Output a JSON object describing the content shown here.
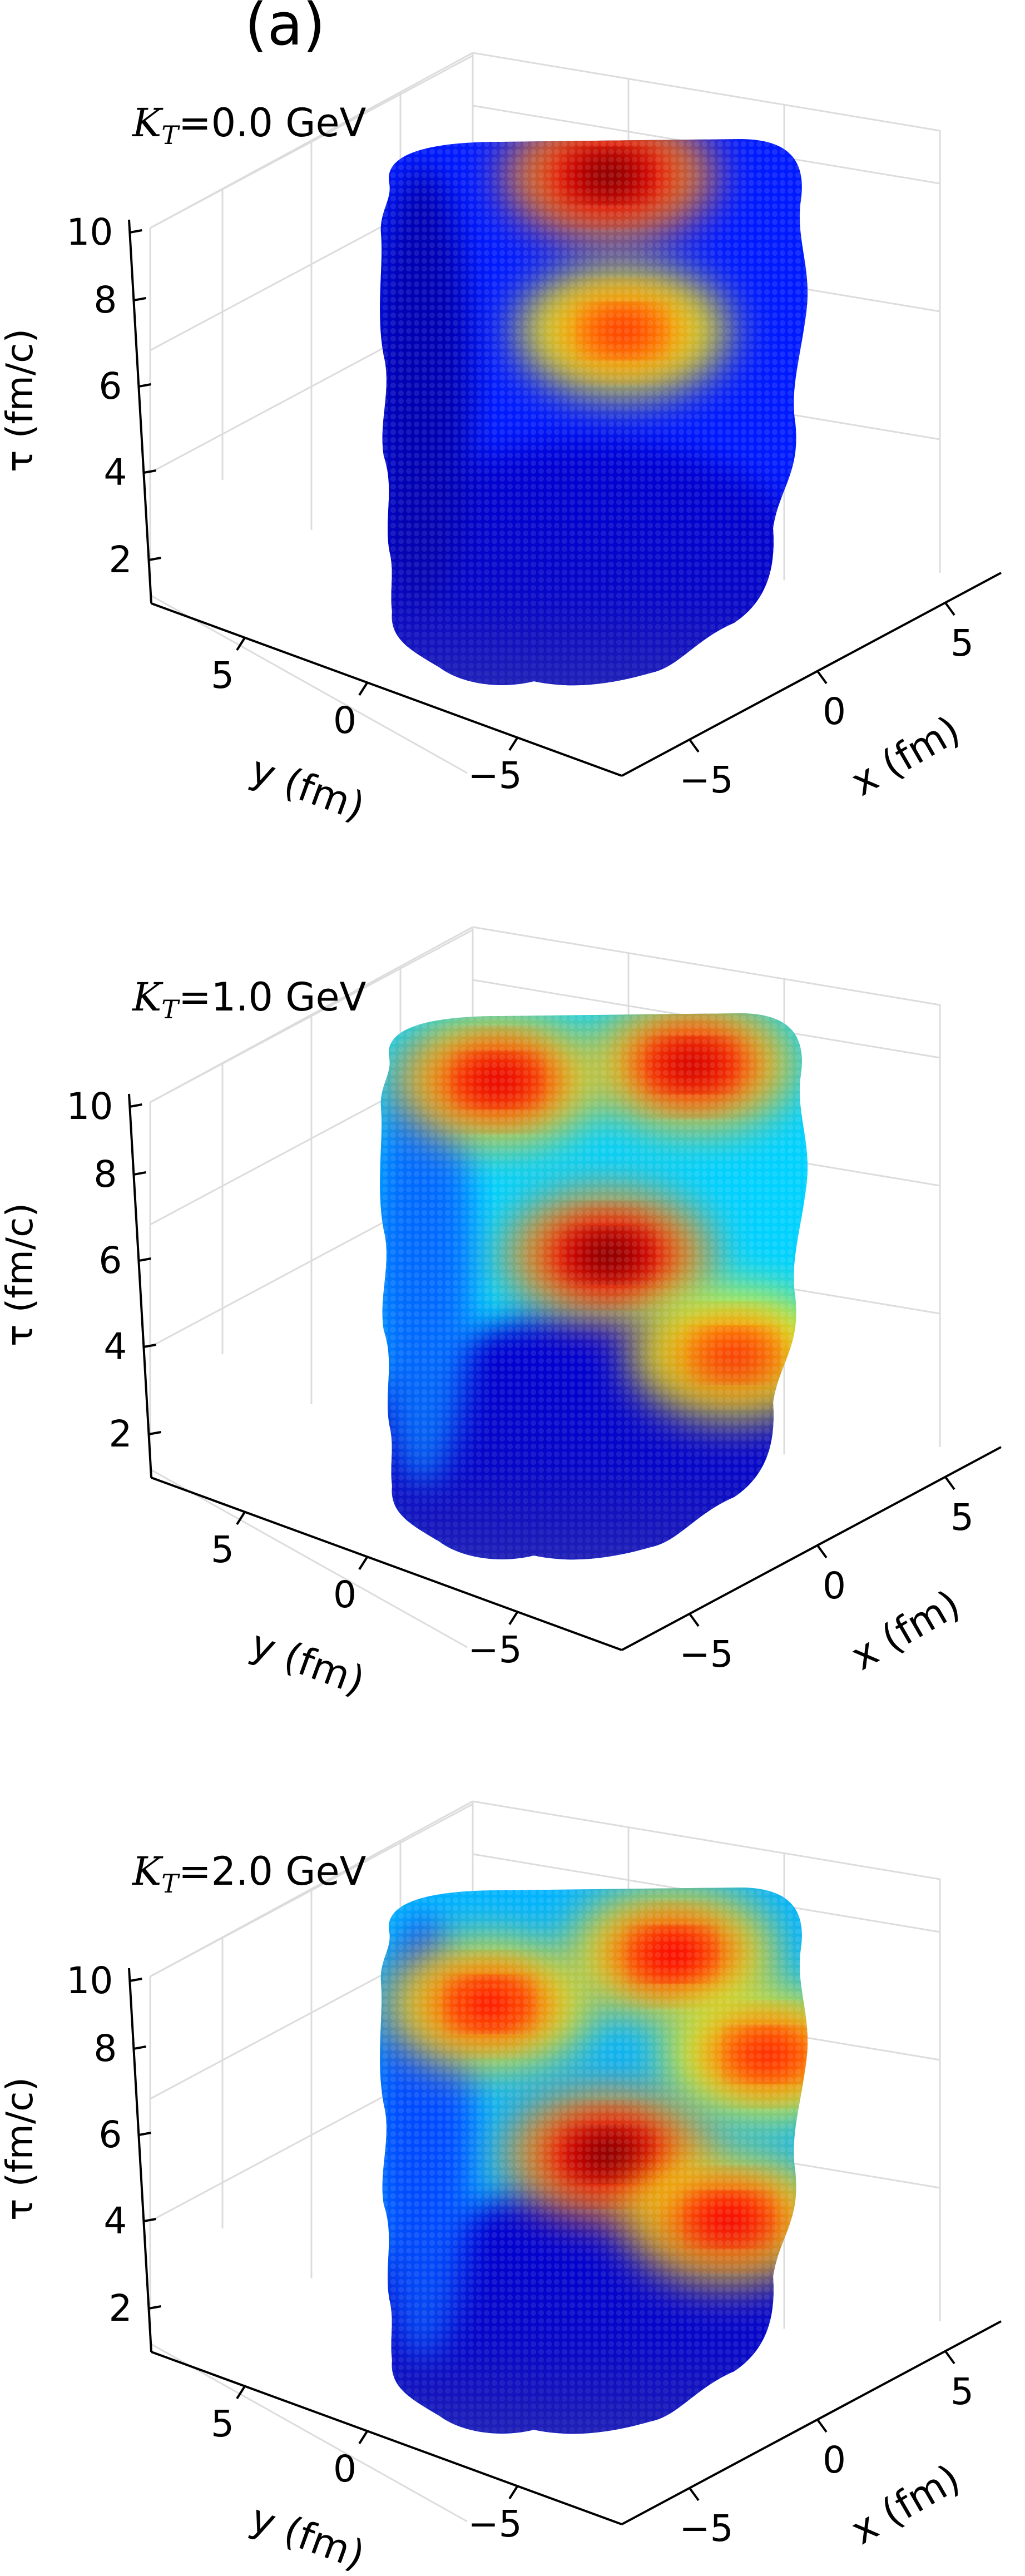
{
  "figure": {
    "panel_label": "(a)"
  },
  "chart_data": [
    {
      "type": "scatter",
      "kt_label": "K",
      "kt_subscript": "T",
      "kt_value_text": "=0.0 GeV",
      "zlabel": "τ (fm/c)",
      "xlabel": "x (fm)",
      "ylabel": "y (fm)",
      "z_ticks": [
        "2",
        "4",
        "6",
        "8",
        "10"
      ],
      "x_ticks": [
        "−5",
        "0",
        "5"
      ],
      "y_ticks": [
        "5",
        "0",
        "−5"
      ],
      "zlim": [
        1,
        11
      ],
      "xlim": [
        -7,
        7
      ],
      "ylim": [
        -7,
        7
      ],
      "grid": true,
      "hotspots": [
        {
          "z": 10.6,
          "x": 0.5,
          "intensity": 1.0
        },
        {
          "z": 7.5,
          "x": 1.0,
          "intensity": 0.55
        }
      ],
      "base_level": 0.15
    },
    {
      "type": "scatter",
      "kt_label": "K",
      "kt_subscript": "T",
      "kt_value_text": "=1.0 GeV",
      "zlabel": "τ (fm/c)",
      "xlabel": "x (fm)",
      "ylabel": "y (fm)",
      "z_ticks": [
        "2",
        "4",
        "6",
        "8",
        "10"
      ],
      "x_ticks": [
        "−5",
        "0",
        "5"
      ],
      "y_ticks": [
        "5",
        "0",
        "−5"
      ],
      "zlim": [
        1,
        11
      ],
      "xlim": [
        -7,
        7
      ],
      "ylim": [
        -7,
        7
      ],
      "grid": true,
      "hotspots": [
        {
          "z": 6.5,
          "x": 0.5,
          "intensity": 1.0
        },
        {
          "z": 10.3,
          "x": 3.5,
          "intensity": 0.8
        },
        {
          "z": 10.0,
          "x": -3.5,
          "intensity": 0.75
        },
        {
          "z": 4.5,
          "x": 5.0,
          "intensity": 0.55
        }
      ],
      "base_level": 0.33
    },
    {
      "type": "scatter",
      "kt_label": "K",
      "kt_subscript": "T",
      "kt_value_text": "=2.0 GeV",
      "zlabel": "τ (fm/c)",
      "xlabel": "x (fm)",
      "ylabel": "y (fm)",
      "z_ticks": [
        "2",
        "4",
        "6",
        "8",
        "10"
      ],
      "x_ticks": [
        "−5",
        "0",
        "5"
      ],
      "y_ticks": [
        "5",
        "0",
        "−5"
      ],
      "zlim": [
        1,
        11
      ],
      "xlim": [
        -7,
        7
      ],
      "ylim": [
        -7,
        7
      ],
      "grid": true,
      "hotspots": [
        {
          "z": 6.0,
          "x": 0.5,
          "intensity": 1.0
        },
        {
          "z": 4.7,
          "x": 4.8,
          "intensity": 0.7
        },
        {
          "z": 9.0,
          "x": -3.8,
          "intensity": 0.65
        },
        {
          "z": 10.0,
          "x": 2.8,
          "intensity": 0.7
        },
        {
          "z": 8.0,
          "x": 6.2,
          "intensity": 0.6
        }
      ],
      "base_level": 0.3
    }
  ]
}
